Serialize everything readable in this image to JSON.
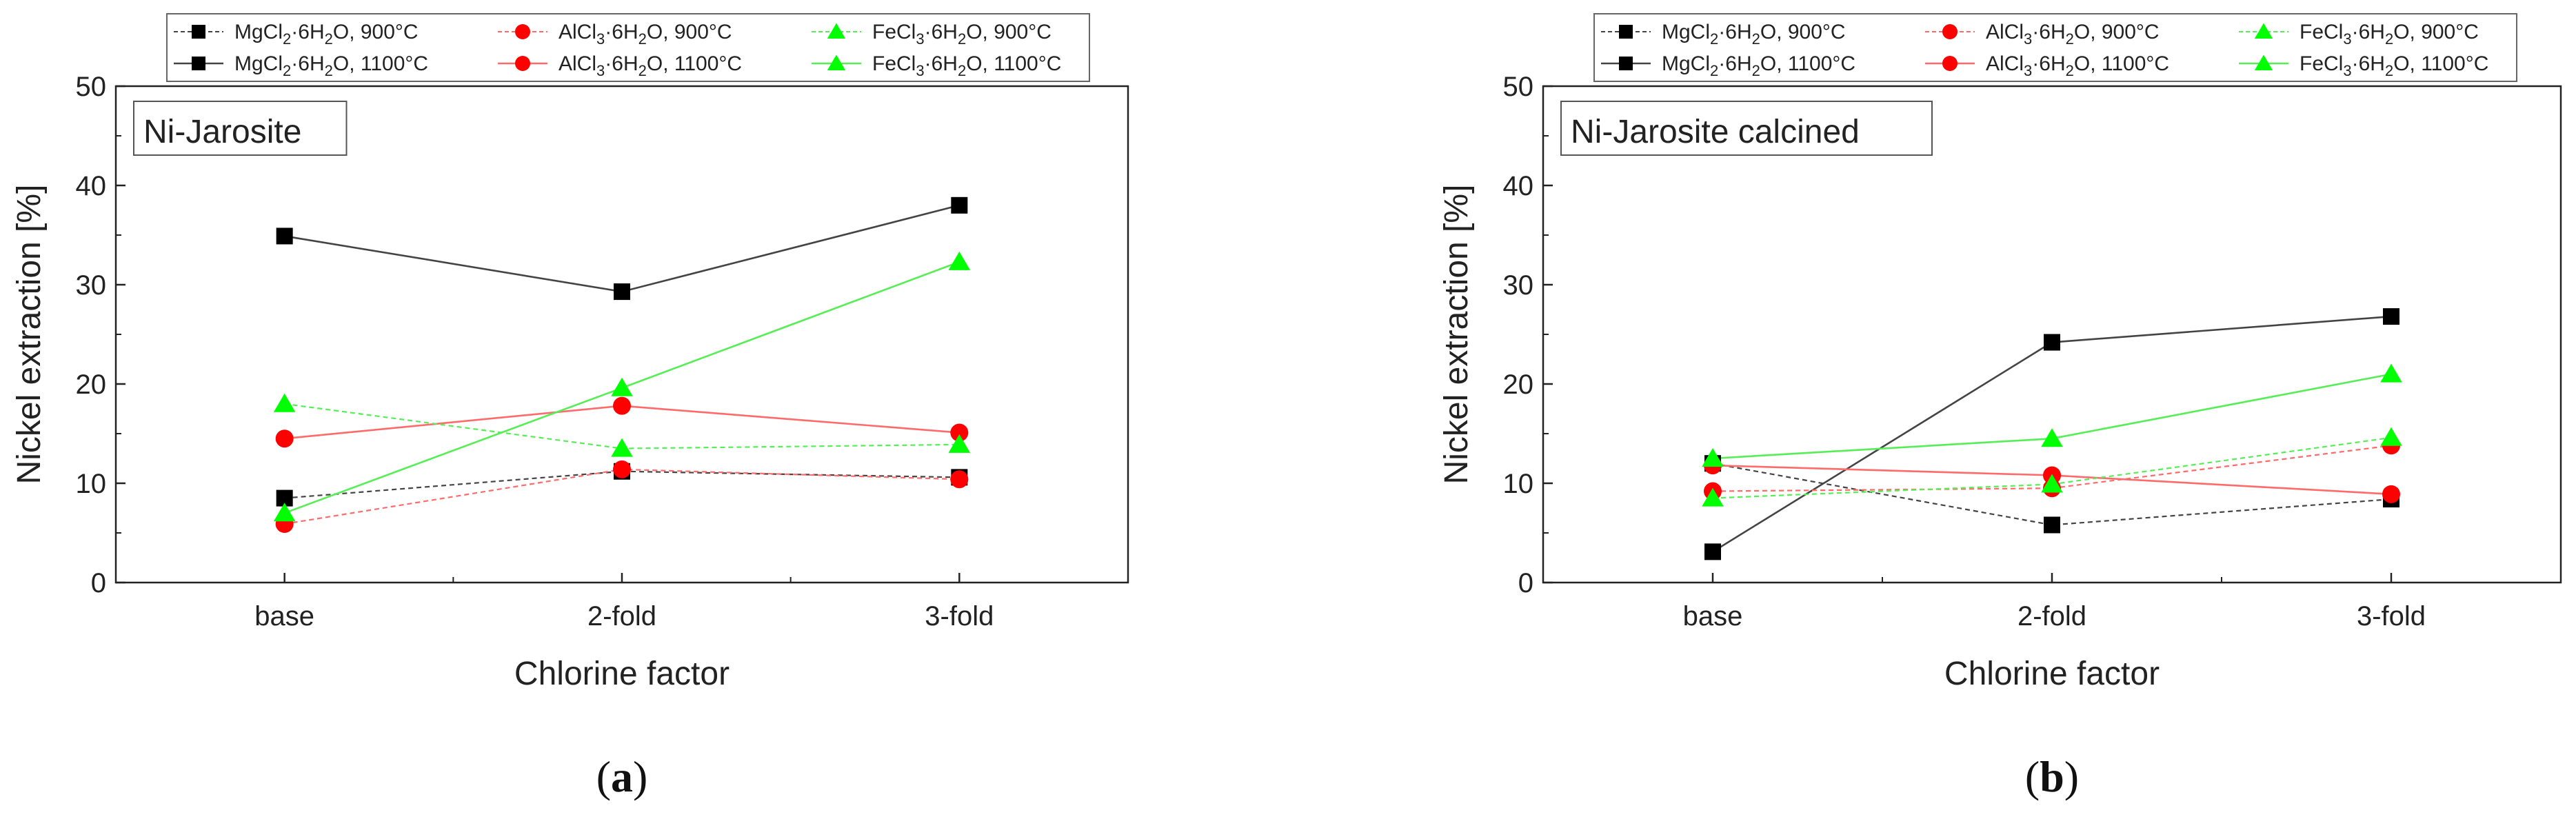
{
  "colors": {
    "mg": "#000000",
    "al": "#ff0000",
    "fe": "#00ff00",
    "mg_line": "#444444",
    "al_line": "#ff6a6a",
    "fe_line": "#55ee55",
    "axis": "#222222"
  },
  "chart_data": [
    {
      "type": "line",
      "panel_label": "a",
      "inset_label": "Ni-Jarosite",
      "xlabel": "Chlorine factor",
      "ylabel": "Nickel extraction [%]",
      "ylim": [
        0,
        50
      ],
      "yticks": [
        "0",
        "10",
        "20",
        "30",
        "40",
        "50"
      ],
      "categories": [
        "base",
        "2-fold",
        "3-fold"
      ],
      "series": [
        {
          "name_prefix": "MgCl",
          "sub1": "2",
          "mid": "·6H",
          "sub2": "2",
          "suffix": "O, 900°C",
          "marker": "square",
          "color_key": "mg",
          "dashed": true,
          "values": [
            8.5,
            11.2,
            10.6
          ]
        },
        {
          "name_prefix": "MgCl",
          "sub1": "2",
          "mid": "·6H",
          "sub2": "2",
          "suffix": "O, 1100°C",
          "marker": "square",
          "color_key": "mg",
          "dashed": false,
          "values": [
            34.9,
            29.3,
            38.0
          ]
        },
        {
          "name_prefix": "AlCl",
          "sub1": "3",
          "mid": "·6H",
          "sub2": "2",
          "suffix": "O, 900°C",
          "marker": "circle",
          "color_key": "al",
          "dashed": true,
          "values": [
            5.9,
            11.4,
            10.4
          ]
        },
        {
          "name_prefix": "AlCl",
          "sub1": "3",
          "mid": "·6H",
          "sub2": "2",
          "suffix": "O, 1100°C",
          "marker": "circle",
          "color_key": "al",
          "dashed": false,
          "values": [
            14.5,
            17.8,
            15.1
          ]
        },
        {
          "name_prefix": "FeCl",
          "sub1": "3",
          "mid": "·6H",
          "sub2": "2",
          "suffix": "O, 900°C",
          "marker": "triangle",
          "color_key": "fe",
          "dashed": true,
          "values": [
            18.0,
            13.5,
            13.9
          ]
        },
        {
          "name_prefix": "FeCl",
          "sub1": "3",
          "mid": "·6H",
          "sub2": "2",
          "suffix": "O, 1100°C",
          "marker": "triangle",
          "color_key": "fe",
          "dashed": false,
          "values": [
            7.0,
            19.6,
            32.3
          ]
        }
      ]
    },
    {
      "type": "line",
      "panel_label": "b",
      "inset_label": "Ni-Jarosite calcined",
      "xlabel": "Chlorine factor",
      "ylabel": "Nickel extraction [%]",
      "ylim": [
        0,
        50
      ],
      "yticks": [
        "0",
        "10",
        "20",
        "30",
        "40",
        "50"
      ],
      "categories": [
        "base",
        "2-fold",
        "3-fold"
      ],
      "series": [
        {
          "name_prefix": "MgCl",
          "sub1": "2",
          "mid": "·6H",
          "sub2": "2",
          "suffix": "O, 900°C",
          "marker": "square",
          "color_key": "mg",
          "dashed": true,
          "values": [
            12.0,
            5.8,
            8.4
          ]
        },
        {
          "name_prefix": "MgCl",
          "sub1": "2",
          "mid": "·6H",
          "sub2": "2",
          "suffix": "O, 1100°C",
          "marker": "square",
          "color_key": "mg",
          "dashed": false,
          "values": [
            3.1,
            24.2,
            26.8
          ]
        },
        {
          "name_prefix": "AlCl",
          "sub1": "3",
          "mid": "·6H",
          "sub2": "2",
          "suffix": "O, 900°C",
          "marker": "circle",
          "color_key": "al",
          "dashed": true,
          "values": [
            9.2,
            9.5,
            13.8
          ]
        },
        {
          "name_prefix": "AlCl",
          "sub1": "3",
          "mid": "·6H",
          "sub2": "2",
          "suffix": "O, 1100°C",
          "marker": "circle",
          "color_key": "al",
          "dashed": false,
          "values": [
            11.8,
            10.8,
            8.9
          ]
        },
        {
          "name_prefix": "FeCl",
          "sub1": "3",
          "mid": "·6H",
          "sub2": "2",
          "suffix": "O, 900°C",
          "marker": "triangle",
          "color_key": "fe",
          "dashed": true,
          "values": [
            8.5,
            9.9,
            14.6
          ]
        },
        {
          "name_prefix": "FeCl",
          "sub1": "3",
          "mid": "·6H",
          "sub2": "2",
          "suffix": "O, 1100°C",
          "marker": "triangle",
          "color_key": "fe",
          "dashed": false,
          "values": [
            12.5,
            14.5,
            21.0
          ]
        }
      ]
    }
  ]
}
